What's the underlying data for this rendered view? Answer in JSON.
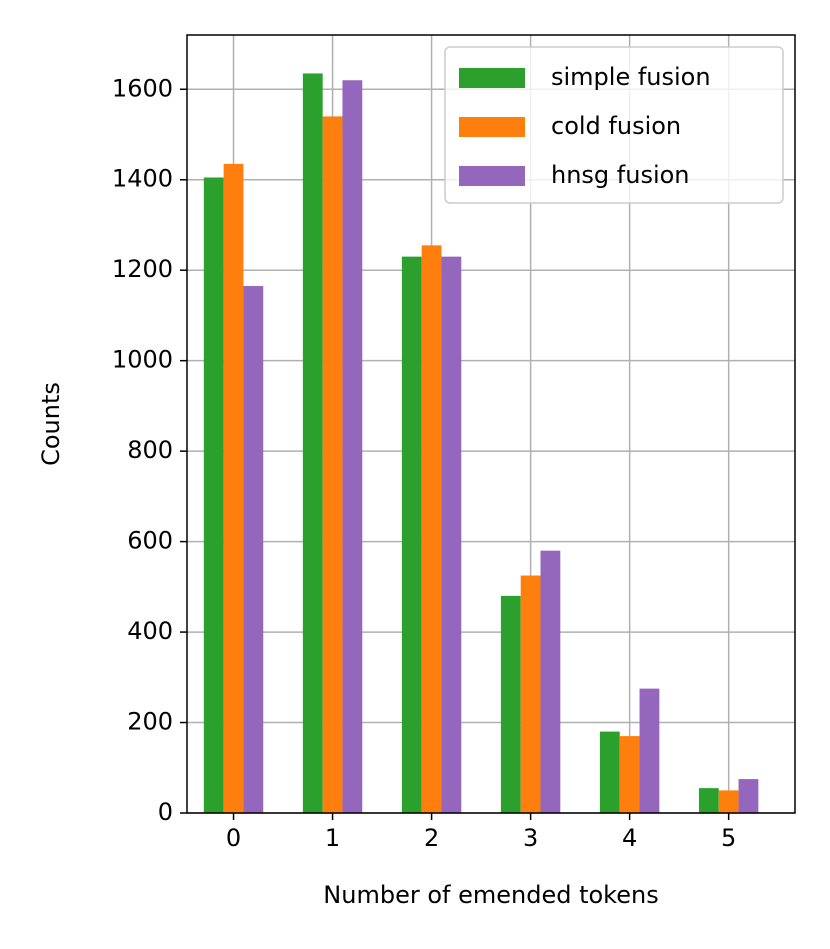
{
  "chart_data": {
    "type": "bar",
    "x": [
      0,
      1,
      2,
      3,
      4,
      5
    ],
    "xlabel": "Number of emended tokens",
    "ylabel": "Counts",
    "series": [
      {
        "name": "simple fusion",
        "color": "#2ca02c",
        "values": [
          1405,
          1635,
          1230,
          480,
          180,
          55
        ]
      },
      {
        "name": "cold fusion",
        "color": "#ff7f0e",
        "values": [
          1435,
          1540,
          1255,
          525,
          170,
          50
        ]
      },
      {
        "name": "hnsg fusion",
        "color": "#9467bd",
        "values": [
          1165,
          1620,
          1230,
          580,
          275,
          75
        ]
      }
    ],
    "xlim": [
      -0.47,
      5.67
    ],
    "xticks": [
      0,
      1,
      2,
      3,
      4,
      5
    ],
    "ylim": [
      0,
      1720
    ],
    "yticks": [
      0,
      200,
      400,
      600,
      800,
      1000,
      1200,
      1400,
      1600
    ],
    "grid": true,
    "legend": "upper right"
  }
}
